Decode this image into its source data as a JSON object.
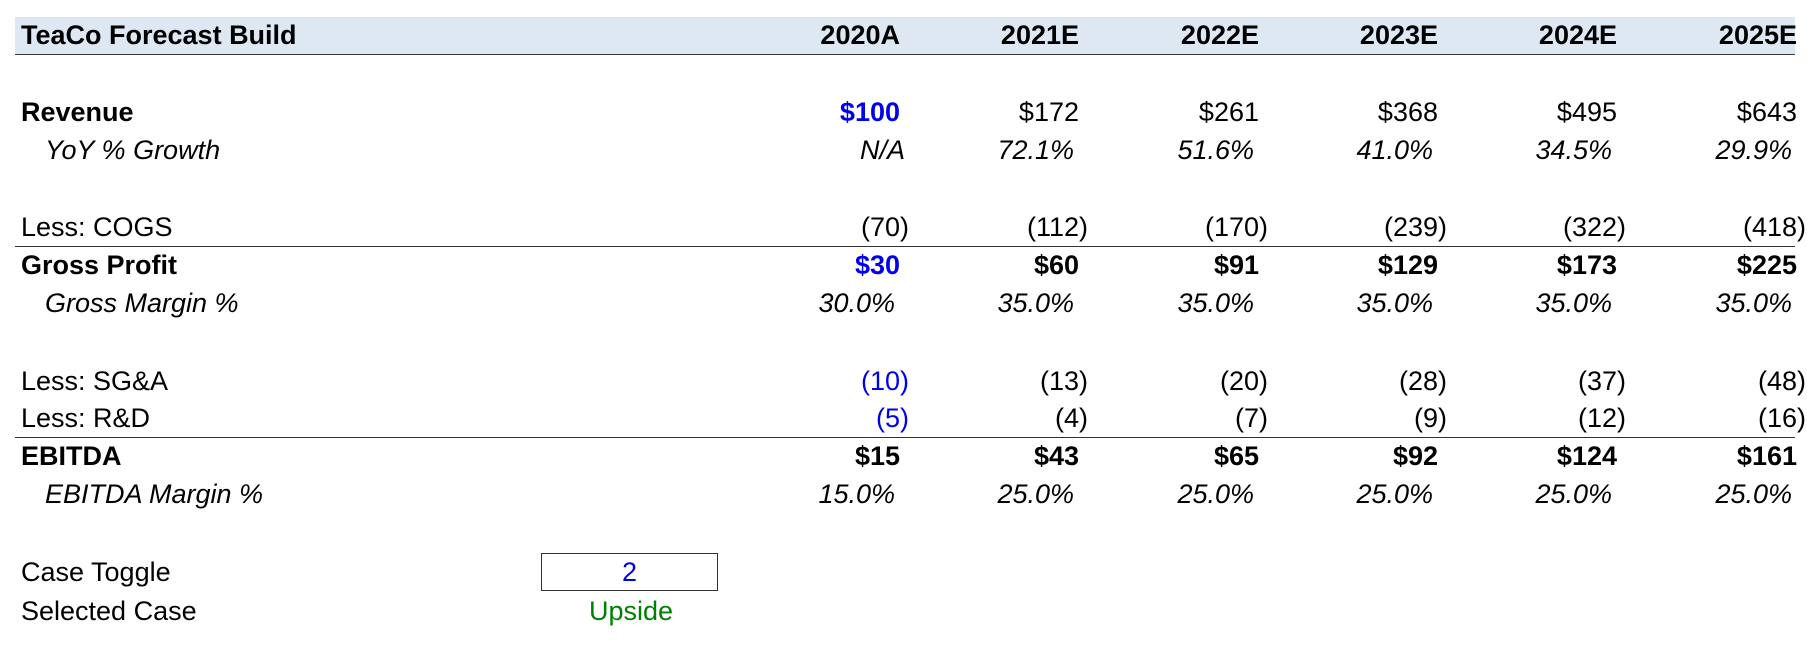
{
  "title": "TeaCo Forecast Build",
  "years": [
    "2020A",
    "2021E",
    "2022E",
    "2023E",
    "2024E",
    "2025E"
  ],
  "revenue": {
    "label": "Revenue",
    "values": [
      "$100",
      "$172",
      "$261",
      "$368",
      "$495",
      "$643"
    ]
  },
  "yoy_growth": {
    "label": "YoY % Growth",
    "values": [
      "N/A",
      "72.1%",
      "51.6%",
      "41.0%",
      "34.5%",
      "29.9%"
    ]
  },
  "cogs": {
    "label": "Less: COGS",
    "values": [
      "(70)",
      "(112)",
      "(170)",
      "(239)",
      "(322)",
      "(418)"
    ]
  },
  "gross_profit": {
    "label": "Gross Profit",
    "values": [
      "$30",
      "$60",
      "$91",
      "$129",
      "$173",
      "$225"
    ]
  },
  "gross_margin": {
    "label": "Gross Margin %",
    "values": [
      "30.0%",
      "35.0%",
      "35.0%",
      "35.0%",
      "35.0%",
      "35.0%"
    ]
  },
  "sga": {
    "label": "Less: SG&A",
    "values": [
      "(10)",
      "(13)",
      "(20)",
      "(28)",
      "(37)",
      "(48)"
    ]
  },
  "rnd": {
    "label": "Less: R&D",
    "values": [
      "(5)",
      "(4)",
      "(7)",
      "(9)",
      "(12)",
      "(16)"
    ]
  },
  "ebitda": {
    "label": "EBITDA",
    "values": [
      "$15",
      "$43",
      "$65",
      "$92",
      "$124",
      "$161"
    ]
  },
  "ebitda_margin": {
    "label": "EBITDA Margin %",
    "values": [
      "15.0%",
      "25.0%",
      "25.0%",
      "25.0%",
      "25.0%",
      "25.0%"
    ]
  },
  "case_toggle": {
    "label": "Case Toggle",
    "value": "2"
  },
  "selected_case": {
    "label": "Selected Case",
    "value": "Upside"
  },
  "colors": {
    "header_fill": "#dde8f3",
    "input_blue": "#0000ee",
    "case_green": "#008000"
  }
}
